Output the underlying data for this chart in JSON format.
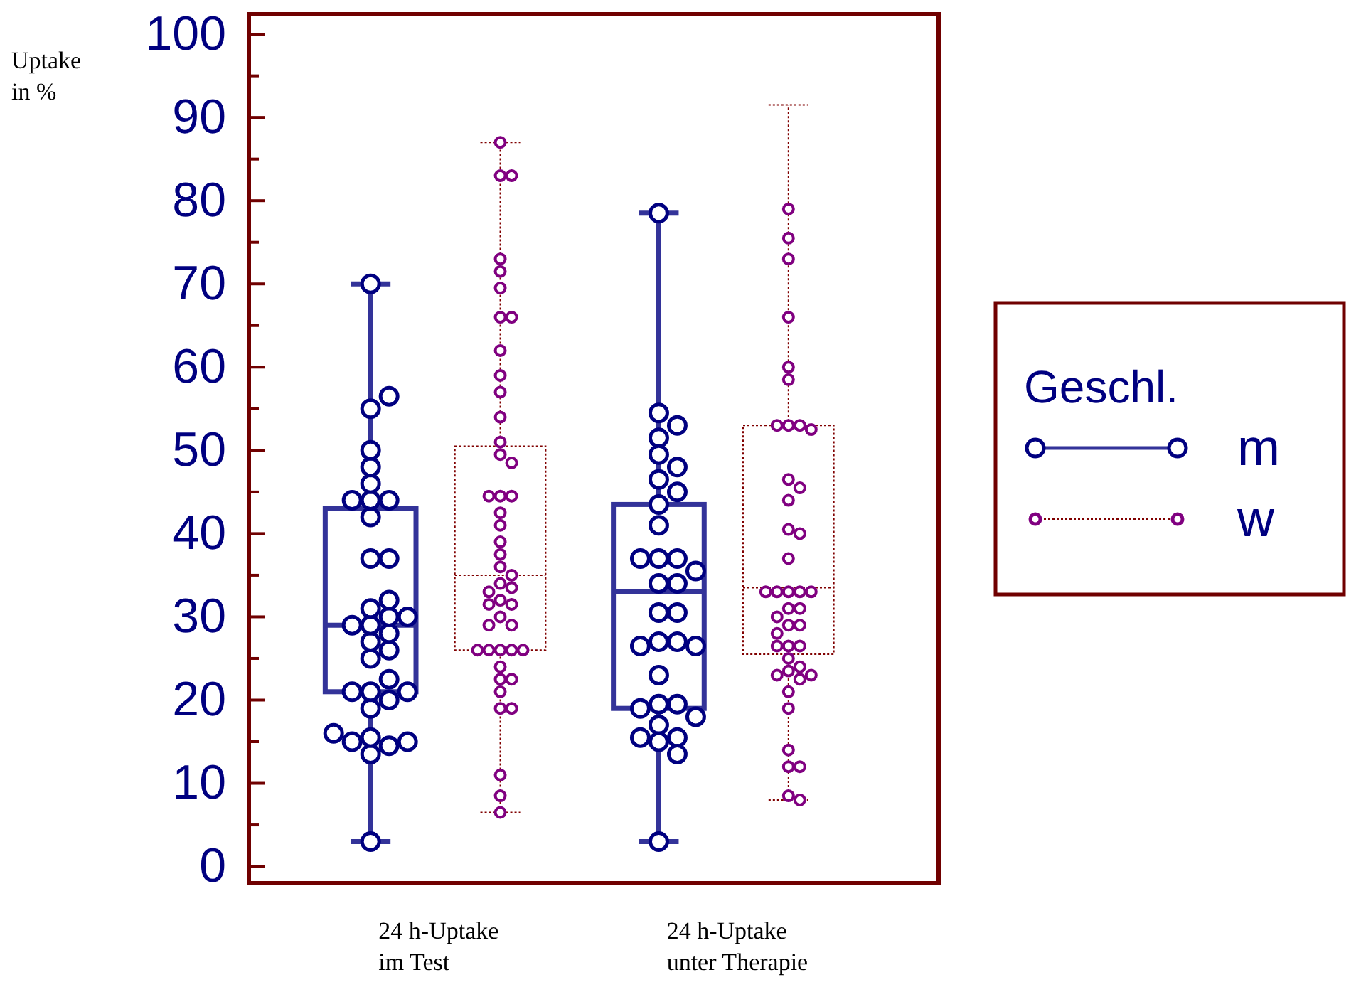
{
  "chart_data": {
    "type": "box",
    "categories": [
      "24 h-Uptake\nim Test",
      "24 h-Uptake\nunter Therapie"
    ],
    "ylabel": "Uptake in %",
    "legend_title": "Geschl.",
    "legend": "right",
    "ylim": [
      -2,
      102.4
    ],
    "yticks": [
      0,
      {
        "value": 5,
        "label": null
      },
      10,
      {
        "value": 15,
        "label": null
      },
      20,
      {
        "value": 25,
        "label": null
      },
      30,
      {
        "value": 35,
        "label": null
      },
      40,
      {
        "value": 45,
        "label": null
      },
      50,
      {
        "value": 55,
        "label": null
      },
      60,
      {
        "value": 65,
        "label": null
      },
      70,
      {
        "value": 75,
        "label": null
      },
      80,
      {
        "value": 85,
        "label": null
      },
      90,
      {
        "value": 95,
        "label": null
      },
      100
    ],
    "grid": false,
    "series": [
      {
        "name": "m",
        "color": "#333399",
        "line_style": "solid",
        "boxes": [
          {
            "low": 3,
            "q1": 21,
            "median": 29,
            "q3": 43,
            "high": 70
          },
          {
            "low": 3,
            "q1": 19,
            "median": 33,
            "q3": 43.5,
            "high": 78.5
          }
        ]
      },
      {
        "name": "w",
        "color": "#800000",
        "line_style": "dotted",
        "boxes": [
          {
            "low": 6.5,
            "q1": 26,
            "median": 35,
            "q3": 50.5,
            "high": 87
          },
          {
            "low": 8,
            "q1": 25.5,
            "median": 33.5,
            "q3": 53,
            "high": 91.5
          }
        ]
      },
      {
        "type": "scatter",
        "color": "#000080",
        "marker": "circle",
        "x": [
          "24 h-Uptake\nim Test",
          "24 h-Uptake\nim Test",
          "24 h-Uptake\nim Test",
          "24 h-Uptake\nim Test",
          "24 h-Uptake\nim Test",
          "24 h-Uptake\nim Test",
          "24 h-Uptake\nim Test",
          "24 h-Uptake\nim Test",
          "24 h-Uptake\nim Test",
          "24 h-Uptake\nim Test",
          "24 h-Uptake\nim Test",
          "24 h-Uptake\nim Test",
          "24 h-Uptake\nim Test",
          "24 h-Uptake\nim Test",
          "24 h-Uptake\nim Test",
          "24 h-Uptake\nim Test",
          "24 h-Uptake\nim Test",
          "24 h-Uptake\nim Test",
          "24 h-Uptake\nim Test",
          "24 h-Uptake\nim Test",
          "24 h-Uptake\nim Test",
          "24 h-Uptake\nim Test",
          "24 h-Uptake\nim Test",
          "24 h-Uptake\nim Test",
          "24 h-Uptake\nim Test",
          "24 h-Uptake\nim Test",
          "24 h-Uptake\nim Test",
          "24 h-Uptake\nim Test",
          "24 h-Uptake\nim Test",
          "24 h-Uptake\nim Test",
          "24 h-Uptake\nim Test",
          "24 h-Uptake\nim Test",
          "24 h-Uptake\nim Test",
          "24 h-Uptake\nim Test",
          "24 h-Uptake\nim Test",
          "24 h-Uptake\nunter Therapie",
          "24 h-Uptake\nunter Therapie",
          "24 h-Uptake\nunter Therapie",
          "24 h-Uptake\nunter Therapie",
          "24 h-Uptake\nunter Therapie",
          "24 h-Uptake\nunter Therapie",
          "24 h-Uptake\nunter Therapie",
          "24 h-Uptake\nunter Therapie",
          "24 h-Uptake\nunter Therapie",
          "24 h-Uptake\nunter Therapie",
          "24 h-Uptake\nunter Therapie",
          "24 h-Uptake\nunter Therapie",
          "24 h-Uptake\nunter Therapie",
          "24 h-Uptake\nunter Therapie",
          "24 h-Uptake\nunter Therapie",
          "24 h-Uptake\nunter Therapie",
          "24 h-Uptake\nunter Therapie",
          "24 h-Uptake\nunter Therapie",
          "24 h-Uptake\nunter Therapie",
          "24 h-Uptake\nunter Therapie",
          "24 h-Uptake\nunter Therapie",
          "24 h-Uptake\nunter Therapie",
          "24 h-Uptake\nunter Therapie",
          "24 h-Uptake\nunter Therapie",
          "24 h-Uptake\nunter Therapie",
          "24 h-Uptake\nunter Therapie",
          "24 h-Uptake\nunter Therapie",
          "24 h-Uptake\nunter Therapie",
          "24 h-Uptake\nunter Therapie",
          "24 h-Uptake\nunter Therapie",
          "24 h-Uptake\nunter Therapie",
          "24 h-Uptake\nunter Therapie",
          "24 h-Uptake\nunter Therapie"
        ],
        "values": [
          3,
          13.5,
          14.5,
          15,
          15,
          15.5,
          16,
          19,
          20,
          21,
          21,
          21,
          22.5,
          25,
          26,
          27,
          28,
          29,
          29,
          30,
          30,
          31,
          32,
          37,
          37,
          42,
          44,
          44,
          44,
          46,
          48,
          50,
          55,
          56.5,
          70,
          78.5,
          54.5,
          53,
          51.5,
          49.5,
          48,
          46.5,
          45,
          43.5,
          41,
          37,
          37,
          37,
          35.5,
          34,
          34,
          30.5,
          30.5,
          27,
          27,
          26.5,
          26.5,
          23,
          19.5,
          19.5,
          19,
          18,
          17,
          15.5,
          15.5,
          15,
          13.5,
          3
        ]
      },
      {
        "type": "scatter",
        "color": "#800080",
        "marker": "circle",
        "x": [
          "24 h-Uptake\nim Test",
          "24 h-Uptake\nim Test",
          "24 h-Uptake\nim Test",
          "24 h-Uptake\nim Test",
          "24 h-Uptake\nim Test",
          "24 h-Uptake\nim Test",
          "24 h-Uptake\nim Test",
          "24 h-Uptake\nim Test",
          "24 h-Uptake\nim Test",
          "24 h-Uptake\nim Test",
          "24 h-Uptake\nim Test",
          "24 h-Uptake\nim Test",
          "24 h-Uptake\nim Test",
          "24 h-Uptake\nim Test",
          "24 h-Uptake\nim Test",
          "24 h-Uptake\nim Test",
          "24 h-Uptake\nim Test",
          "24 h-Uptake\nim Test",
          "24 h-Uptake\nim Test",
          "24 h-Uptake\nim Test",
          "24 h-Uptake\nim Test",
          "24 h-Uptake\nim Test",
          "24 h-Uptake\nim Test",
          "24 h-Uptake\nim Test",
          "24 h-Uptake\nim Test",
          "24 h-Uptake\nim Test",
          "24 h-Uptake\nim Test",
          "24 h-Uptake\nim Test",
          "24 h-Uptake\nim Test",
          "24 h-Uptake\nim Test",
          "24 h-Uptake\nim Test",
          "24 h-Uptake\nim Test",
          "24 h-Uptake\nim Test",
          "24 h-Uptake\nim Test",
          "24 h-Uptake\nim Test",
          "24 h-Uptake\nim Test",
          "24 h-Uptake\nim Test",
          "24 h-Uptake\nim Test",
          "24 h-Uptake\nim Test",
          "24 h-Uptake\nim Test",
          "24 h-Uptake\nim Test",
          "24 h-Uptake\nim Test",
          "24 h-Uptake\nim Test",
          "24 h-Uptake\nim Test",
          "24 h-Uptake\nim Test",
          "24 h-Uptake\nim Test",
          "24 h-Uptake\nim Test",
          "24 h-Uptake\nunter Therapie",
          "24 h-Uptake\nunter Therapie",
          "24 h-Uptake\nunter Therapie",
          "24 h-Uptake\nunter Therapie",
          "24 h-Uptake\nunter Therapie",
          "24 h-Uptake\nunter Therapie",
          "24 h-Uptake\nunter Therapie",
          "24 h-Uptake\nunter Therapie",
          "24 h-Uptake\nunter Therapie",
          "24 h-Uptake\nunter Therapie",
          "24 h-Uptake\nunter Therapie",
          "24 h-Uptake\nunter Therapie",
          "24 h-Uptake\nunter Therapie",
          "24 h-Uptake\nunter Therapie",
          "24 h-Uptake\nunter Therapie",
          "24 h-Uptake\nunter Therapie",
          "24 h-Uptake\nunter Therapie",
          "24 h-Uptake\nunter Therapie",
          "24 h-Uptake\nunter Therapie",
          "24 h-Uptake\nunter Therapie",
          "24 h-Uptake\nunter Therapie",
          "24 h-Uptake\nunter Therapie",
          "24 h-Uptake\nunter Therapie",
          "24 h-Uptake\nunter Therapie",
          "24 h-Uptake\nunter Therapie",
          "24 h-Uptake\nunter Therapie",
          "24 h-Uptake\nunter Therapie",
          "24 h-Uptake\nunter Therapie",
          "24 h-Uptake\nunter Therapie",
          "24 h-Uptake\nunter Therapie",
          "24 h-Uptake\nunter Therapie",
          "24 h-Uptake\nunter Therapie",
          "24 h-Uptake\nunter Therapie",
          "24 h-Uptake\nunter Therapie",
          "24 h-Uptake\nunter Therapie",
          "24 h-Uptake\nunter Therapie",
          "24 h-Uptake\nunter Therapie",
          "24 h-Uptake\nunter Therapie",
          "24 h-Uptake\nunter Therapie",
          "24 h-Uptake\nunter Therapie",
          "24 h-Uptake\nunter Therapie",
          "24 h-Uptake\nunter Therapie",
          "24 h-Uptake\nunter Therapie"
        ],
        "values": [
          87,
          83,
          83,
          73,
          71.5,
          69.5,
          66,
          66,
          62,
          59,
          57,
          54,
          51,
          49.5,
          48.5,
          44.5,
          44.5,
          44.5,
          42.5,
          41,
          39,
          37.5,
          36,
          35,
          34,
          33.5,
          33,
          32,
          31.5,
          31.5,
          30,
          29,
          29,
          26,
          26,
          26,
          26,
          26,
          24,
          22.5,
          22.5,
          21,
          19,
          19,
          11,
          8.5,
          6.5,
          79,
          75.5,
          73,
          66,
          60,
          58.5,
          53,
          53,
          53,
          52.5,
          46.5,
          45.5,
          44,
          40.5,
          40,
          37,
          33,
          33,
          33,
          33,
          33,
          31,
          31,
          30,
          29,
          29,
          28,
          26.5,
          26.5,
          26.5,
          25,
          24,
          23.5,
          23,
          23,
          22.5,
          21,
          19,
          14,
          12,
          12,
          8.5,
          8
        ]
      }
    ]
  }
}
